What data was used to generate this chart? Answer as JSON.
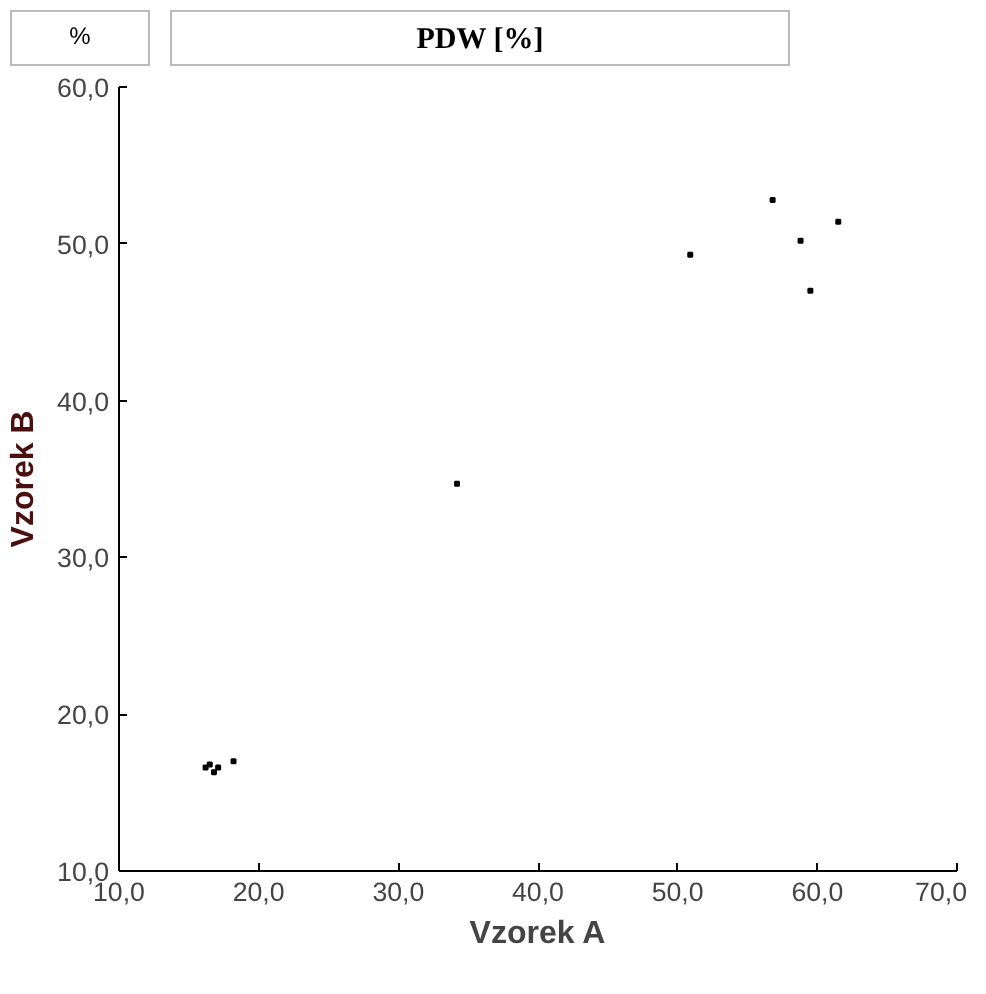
{
  "chart_data": {
    "type": "scatter",
    "title": "PDW [%]",
    "annotations": [
      "%"
    ],
    "xlabel": "Vzorek A",
    "ylabel": "Vzorek B",
    "x": [
      56.8,
      50.9,
      58.8,
      61.5,
      59.5,
      34.2,
      16.5,
      16.8,
      16.2,
      17.1,
      18.2
    ],
    "values": [
      52.8,
      49.3,
      50.2,
      51.4,
      47.0,
      34.7,
      16.8,
      16.3,
      16.6,
      16.6,
      17.0
    ],
    "color": "#000000",
    "marker": "square",
    "grid": false,
    "xlim": [
      10,
      70
    ],
    "ylim": [
      10,
      60
    ],
    "xticks": [
      {
        "value": 10,
        "label": "10,0"
      },
      {
        "value": 20,
        "label": "20,0"
      },
      {
        "value": 30,
        "label": "30,0"
      },
      {
        "value": 40,
        "label": "40,0"
      },
      {
        "value": 50,
        "label": "50,0"
      },
      {
        "value": 60,
        "label": "60,0"
      },
      {
        "value": 70,
        "label": "70,0"
      }
    ],
    "yticks": [
      {
        "value": 10,
        "label": "10,0"
      },
      {
        "value": 20,
        "label": "20,0"
      },
      {
        "value": 30,
        "label": "30,0"
      },
      {
        "value": 40,
        "label": "40,0"
      },
      {
        "value": 50,
        "label": "50,0"
      },
      {
        "value": 60,
        "label": "60,0"
      }
    ]
  }
}
